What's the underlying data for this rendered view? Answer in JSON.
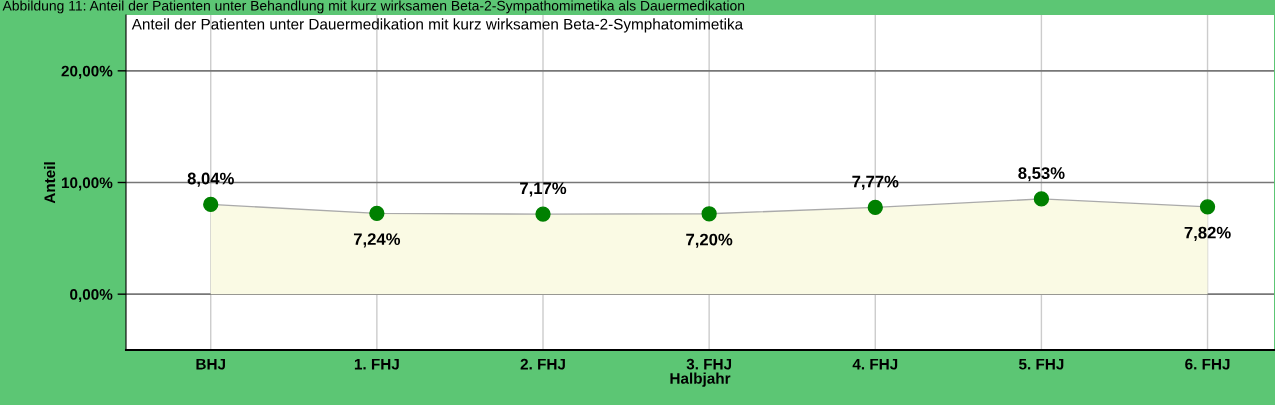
{
  "chart_data": {
    "type": "area",
    "title": "Anteil der Patienten unter Dauermedikation mit kurz wirksamen Beta-2-Symphatomimetika",
    "annotations": [
      "Abbildung 11: Anteil der Patienten unter Behandlung mit kurz wirksamen Beta-2-Sympathomimetika als Dauermedikation"
    ],
    "xlabel": "Halbjahr",
    "ylabel": "Anteil",
    "categories": [
      "BHJ",
      "1. FHJ",
      "2. FHJ",
      "3. FHJ",
      "4. FHJ",
      "5. FHJ",
      "6. FHJ"
    ],
    "series": [
      {
        "color": "#fafae4",
        "values": [
          8.04,
          7.24,
          7.17,
          7.2,
          7.77,
          8.53,
          7.82
        ],
        "value_labels": [
          "8,04%",
          "7,24%",
          "7,17%",
          "7,20%",
          "7,77%",
          "8,53%",
          "7,82%"
        ]
      }
    ],
    "ylim": [
      -5,
      25
    ],
    "yticks": [
      {
        "value": 0,
        "label": "0,00%"
      },
      {
        "value": 10,
        "label": "10,00%"
      },
      {
        "value": 20,
        "label": "20,00%"
      }
    ],
    "grid": true,
    "marker": "circle",
    "legend": false
  }
}
